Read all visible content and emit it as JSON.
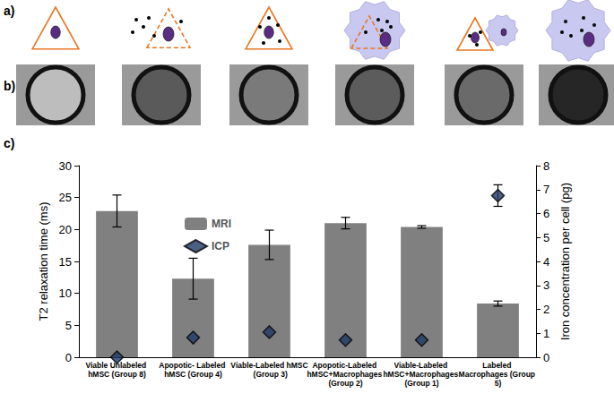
{
  "panels": {
    "labels": [
      "a)",
      "b)",
      "c)"
    ]
  },
  "chart_data": {
    "type": "bar",
    "categories": [
      "Viable Unlabeled hMSC (Group 8)",
      "Apopotic- Labeled hMSC (Group 4)",
      "Viable-Labeled hMSC (Group 3)",
      "Apopotic-Labeled hMSC+Macrophages (Group 2)",
      "Viable-Labeled hMSC+Macrophages (Group 1)",
      "Labeled Macrophages (Group 5)"
    ],
    "series": [
      {
        "name": "MRI",
        "type": "bar",
        "color": "#808080",
        "values": [
          22.9,
          12.3,
          17.6,
          21.0,
          20.4,
          8.4
        ],
        "errors": [
          2.5,
          3.2,
          2.3,
          0.9,
          0.2,
          0.4
        ]
      },
      {
        "name": "ICP",
        "type": "scatter",
        "axis": "y2",
        "color": "#1f3864",
        "marker": "diamond",
        "values": [
          0,
          0.82,
          1.05,
          0.72,
          0.72,
          6.75
        ],
        "errors": [
          0,
          0,
          0,
          0,
          0,
          0.45
        ]
      }
    ],
    "ylabel": "T2 relaxation time (ms)",
    "y2label": "Iron concentration per cell (pg)",
    "ylim": [
      0,
      30
    ],
    "yticks": [
      0,
      5,
      10,
      15,
      20,
      25,
      30
    ],
    "y2lim": [
      0,
      8
    ],
    "y2ticks": [
      0,
      1,
      2,
      3,
      4,
      5,
      6,
      7,
      8
    ],
    "grid": false,
    "legend": "upper left"
  }
}
